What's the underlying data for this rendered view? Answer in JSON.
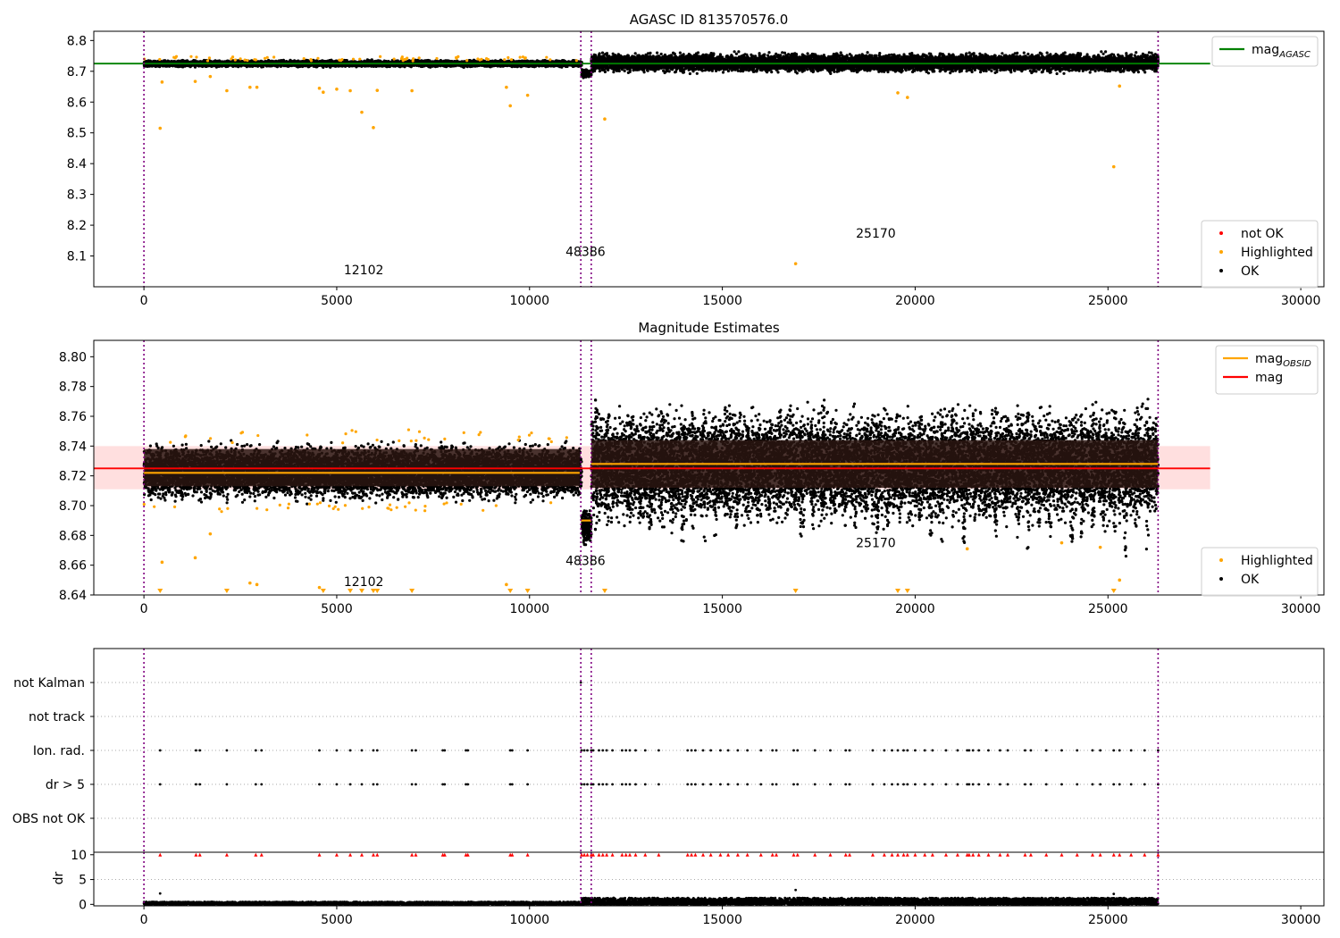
{
  "chart_data": [
    {
      "type": "scatter",
      "title": "AGASC ID 813570576.0",
      "xlim": [
        -1300,
        30600
      ],
      "ylim": [
        8.0,
        8.83
      ],
      "x_ticks": [
        0,
        5000,
        10000,
        15000,
        20000,
        25000,
        30000
      ],
      "y_ticks": [
        8.1,
        8.2,
        8.3,
        8.4,
        8.5,
        8.6,
        8.7,
        8.8
      ],
      "vlines": [
        0,
        11330,
        11600,
        26300
      ],
      "obsid_labels": [
        {
          "text": "12102",
          "x": 5700,
          "y": 8.04
        },
        {
          "text": "48386",
          "x": 11450,
          "y": 8.1
        },
        {
          "text": "25170",
          "x": 18980,
          "y": 8.16
        }
      ],
      "hline": {
        "name": "mag_AGASC",
        "y": 8.725,
        "color": "#008000"
      },
      "ok_bands": [
        {
          "x_from": 0,
          "x_to": 11350,
          "y_low": 8.712,
          "y_high": 8.738
        },
        {
          "x_from": 11350,
          "x_to": 11600,
          "y_low": 8.677,
          "y_high": 8.71
        },
        {
          "x_from": 11600,
          "x_to": 26300,
          "y_low": 8.69,
          "y_high": 8.765
        }
      ],
      "highlighted_points": [
        {
          "x": 420,
          "y": 8.515
        },
        {
          "x": 470,
          "y": 8.665
        },
        {
          "x": 1330,
          "y": 8.667
        },
        {
          "x": 1720,
          "y": 8.683
        },
        {
          "x": 2150,
          "y": 8.637
        },
        {
          "x": 2750,
          "y": 8.648
        },
        {
          "x": 2930,
          "y": 8.648
        },
        {
          "x": 4550,
          "y": 8.645
        },
        {
          "x": 4650,
          "y": 8.632
        },
        {
          "x": 5000,
          "y": 8.642
        },
        {
          "x": 5350,
          "y": 8.637
        },
        {
          "x": 5650,
          "y": 8.567
        },
        {
          "x": 5950,
          "y": 8.517
        },
        {
          "x": 6050,
          "y": 8.638
        },
        {
          "x": 6950,
          "y": 8.637
        },
        {
          "x": 9400,
          "y": 8.648
        },
        {
          "x": 9500,
          "y": 8.588
        },
        {
          "x": 9950,
          "y": 8.622
        },
        {
          "x": 11950,
          "y": 8.545
        },
        {
          "x": 16900,
          "y": 8.075
        },
        {
          "x": 19550,
          "y": 8.63
        },
        {
          "x": 19800,
          "y": 8.615
        },
        {
          "x": 25150,
          "y": 8.39
        },
        {
          "x": 25300,
          "y": 8.652
        }
      ],
      "legends": [
        {
          "placement": "upper-right",
          "entries": [
            {
              "label": "mag",
              "sub": "AGASC",
              "color": "#008000",
              "marker": "line"
            }
          ]
        },
        {
          "placement": "lower-right",
          "entries": [
            {
              "label": "not OK",
              "color": "#ff0000",
              "marker": "dot"
            },
            {
              "label": "Highlighted",
              "color": "#ffa500",
              "marker": "dot"
            },
            {
              "label": "OK",
              "color": "#000000",
              "marker": "dot"
            }
          ]
        }
      ]
    },
    {
      "type": "scatter",
      "title": "Magnitude Estimates",
      "xlim": [
        -1300,
        30600
      ],
      "ylim": [
        8.64,
        8.811
      ],
      "x_ticks": [
        0,
        5000,
        10000,
        15000,
        20000,
        25000,
        30000
      ],
      "y_ticks": [
        8.64,
        8.66,
        8.68,
        8.7,
        8.72,
        8.74,
        8.76,
        8.78,
        8.8
      ],
      "vlines": [
        0,
        11330,
        11600,
        26300
      ],
      "obsid_labels": [
        {
          "text": "12102",
          "x": 5700,
          "y": 8.646
        },
        {
          "text": "48386",
          "x": 11450,
          "y": 8.66
        },
        {
          "text": "25170",
          "x": 18980,
          "y": 8.672
        }
      ],
      "mag_line": {
        "name": "mag",
        "y": 8.725,
        "x_from": -1300,
        "x_to": 27650,
        "color": "#ff0000"
      },
      "mag_band": {
        "y_low": 8.711,
        "y_high": 8.74,
        "x_from": -1300,
        "x_to": 27650,
        "color": "#ffc0c0"
      },
      "mag_obsid": {
        "name": "mag_OBSID",
        "color": "#ffa500",
        "segments": [
          {
            "x_from": 0,
            "x_to": 11300,
            "y": 8.722
          },
          {
            "x_from": 11330,
            "x_to": 11600,
            "y": 8.69
          },
          {
            "x_from": 11600,
            "x_to": 26300,
            "y": 8.728
          }
        ]
      },
      "ok_bands": [
        {
          "x_from": 0,
          "x_to": 11350,
          "y_low": 8.7,
          "y_high": 8.745
        },
        {
          "x_from": 11350,
          "x_to": 11600,
          "y_low": 8.672,
          "y_high": 8.7
        },
        {
          "x_from": 11600,
          "x_to": 26300,
          "y_low": 8.682,
          "y_high": 8.772
        }
      ],
      "highlighted_points": [
        {
          "x": 470,
          "y": 8.662
        },
        {
          "x": 1330,
          "y": 8.665
        },
        {
          "x": 1720,
          "y": 8.681
        },
        {
          "x": 2750,
          "y": 8.648
        },
        {
          "x": 2930,
          "y": 8.647
        },
        {
          "x": 4550,
          "y": 8.645
        },
        {
          "x": 9400,
          "y": 8.647
        },
        {
          "x": 21350,
          "y": 8.671
        },
        {
          "x": 23800,
          "y": 8.675
        },
        {
          "x": 24800,
          "y": 8.672
        },
        {
          "x": 25300,
          "y": 8.65
        }
      ],
      "below_axis_markers_x": [
        420,
        2150,
        4650,
        5350,
        5650,
        5950,
        6050,
        6950,
        9500,
        9950,
        11950,
        16900,
        19550,
        19800,
        25150
      ],
      "legends": [
        {
          "placement": "upper-right",
          "entries": [
            {
              "label": "mag",
              "sub": "OBSID",
              "color": "#ffa500",
              "marker": "line"
            },
            {
              "label": "mag",
              "color": "#ff0000",
              "marker": "line"
            }
          ]
        },
        {
          "placement": "lower-right",
          "entries": [
            {
              "label": "Highlighted",
              "color": "#ffa500",
              "marker": "dot"
            },
            {
              "label": "OK",
              "color": "#000000",
              "marker": "dot"
            }
          ]
        }
      ]
    },
    {
      "type": "scatter",
      "xlim": [
        -1300,
        30600
      ],
      "categories": [
        "not Kalman",
        "not track",
        "Ion. rad.",
        "dr > 5",
        "OBS not OK"
      ],
      "vlines": [
        0,
        11330,
        11600,
        26300
      ],
      "flags": {
        "not Kalman": [
          11330
        ],
        "Ion. rad.": [
          420,
          1350,
          1450,
          2150,
          2900,
          3050,
          4550,
          5000,
          5350,
          5650,
          5950,
          6050,
          6950,
          7050,
          7750,
          7800,
          8350,
          8400,
          9500,
          9550,
          9950,
          11350,
          11420,
          11500,
          11600,
          11650,
          11800,
          11900,
          12000,
          12150,
          12400,
          12500,
          12600,
          12750,
          13000,
          13350,
          14100,
          14200,
          14300,
          14500,
          14700,
          14950,
          15150,
          15400,
          15650,
          16000,
          16300,
          16400,
          16850,
          16950,
          17400,
          17800,
          18200,
          18300,
          18900,
          19200,
          19400,
          19550,
          19700,
          19800,
          20000,
          20250,
          20450,
          20800,
          21100,
          21350,
          21400,
          21500,
          21650,
          21900,
          22200,
          22400,
          22850,
          23000,
          23400,
          23800,
          24200,
          24600,
          24800,
          25150,
          25300,
          25600,
          25950,
          26300
        ],
        "dr > 5": [
          420,
          1350,
          1450,
          2150,
          2900,
          3050,
          4550,
          5000,
          5350,
          5650,
          5950,
          6050,
          6950,
          7050,
          7750,
          7800,
          8350,
          8400,
          9500,
          9550,
          9950,
          11350,
          11420,
          11500,
          11600,
          11650,
          11800,
          11900,
          12000,
          12150,
          12400,
          12500,
          12600,
          12750,
          13000,
          13350,
          14100,
          14200,
          14300,
          14500,
          14700,
          14950,
          15150,
          15400,
          15650,
          16000,
          16300,
          16400,
          16850,
          16950,
          17400,
          17800,
          18200,
          18300,
          18900,
          19200,
          19400,
          19550,
          19700,
          19800,
          20000,
          20250,
          20450,
          20800,
          21100,
          21350,
          21400,
          21500,
          21650,
          21900,
          22200,
          22400,
          22850,
          23000,
          23400,
          23800,
          24200,
          24600,
          24800,
          25150,
          25300,
          25600,
          25950,
          26300
        ]
      }
    },
    {
      "type": "scatter",
      "ylabel": "dr",
      "xlim": [
        -1300,
        30600
      ],
      "ylim": [
        -0.3,
        10.5
      ],
      "x_ticks": [
        0,
        5000,
        10000,
        15000,
        20000,
        25000,
        30000
      ],
      "y_ticks": [
        0,
        5,
        10
      ],
      "clip_value": 10,
      "vlines": [
        0,
        11330,
        11600,
        26300
      ],
      "ok_bands": [
        {
          "x_from": 0,
          "x_to": 11350,
          "y_low": 0.05,
          "y_high": 0.5
        },
        {
          "x_from": 11350,
          "x_to": 26300,
          "y_low": 0.05,
          "y_high": 1.3
        }
      ],
      "outliers": [
        {
          "x": 420,
          "y": 2.2
        },
        {
          "x": 16900,
          "y": 2.9
        },
        {
          "x": 25150,
          "y": 2.1
        }
      ],
      "clipped_x": [
        420,
        1350,
        1450,
        2150,
        2900,
        3050,
        4550,
        5000,
        5350,
        5650,
        5950,
        6050,
        6950,
        7050,
        7750,
        7800,
        8350,
        8400,
        9500,
        9550,
        9950,
        11350,
        11420,
        11500,
        11600,
        11650,
        11800,
        11900,
        12000,
        12150,
        12400,
        12500,
        12600,
        12750,
        13000,
        13350,
        14100,
        14200,
        14300,
        14500,
        14700,
        14950,
        15150,
        15400,
        15650,
        16000,
        16300,
        16400,
        16850,
        16950,
        17400,
        17800,
        18200,
        18300,
        18900,
        19200,
        19400,
        19550,
        19700,
        19800,
        20000,
        20250,
        20450,
        20800,
        21100,
        21350,
        21400,
        21500,
        21650,
        21900,
        22200,
        22400,
        22850,
        23000,
        23400,
        23800,
        24200,
        24600,
        24800,
        25150,
        25300,
        25600,
        25950,
        26300
      ]
    }
  ]
}
